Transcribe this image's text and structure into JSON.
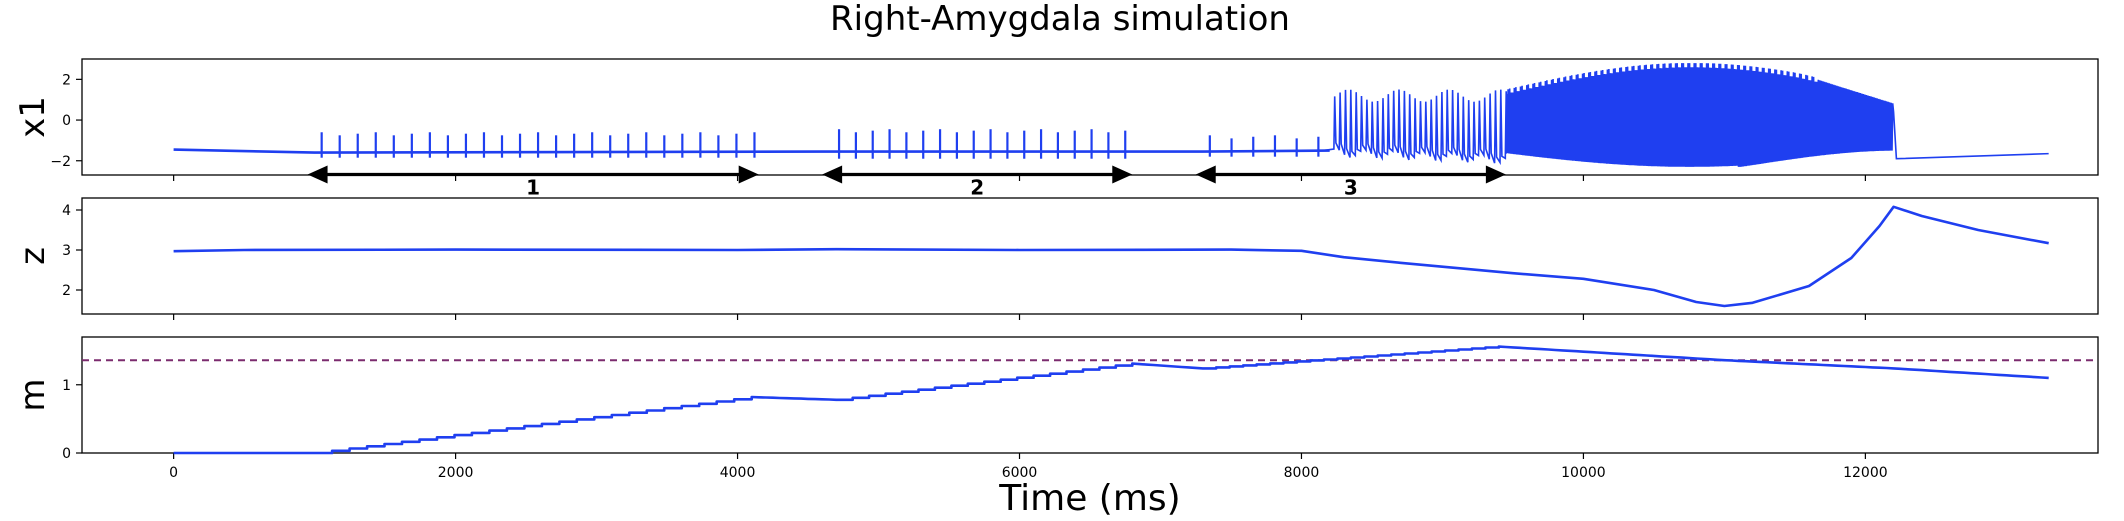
{
  "figure": {
    "title": "Right-Amygdala simulation"
  },
  "chart_data": [
    {
      "type": "line",
      "panel": "x1",
      "ylabel": "x1",
      "xlim": [
        -650,
        13650
      ],
      "ylim": [
        -2.7,
        3.0
      ],
      "yticks": [
        -2,
        0,
        2
      ],
      "ytick_labels": [
        "−2",
        "0",
        "2"
      ],
      "series": [
        {
          "color": "#1f3ff0",
          "baseline": -1.55,
          "resting_segments": [
            [
              0,
              1000,
              -1.45,
              -1.6
            ],
            [
              1000,
              4600,
              -1.6,
              -1.55
            ],
            [
              4600,
              7300,
              -1.55,
              -1.55
            ],
            [
              7300,
              8200,
              -1.55,
              -1.5
            ]
          ],
          "spike_trains": [
            {
              "x_start": 1050,
              "x_end": 4120,
              "count": 25,
              "top": -0.75,
              "bottom": -1.85
            },
            {
              "x_start": 4720,
              "x_end": 6750,
              "count": 18,
              "top": -0.6,
              "bottom": -1.9
            },
            {
              "x_start": 7350,
              "x_end": 8120,
              "count": 6,
              "top": -0.9,
              "bottom": -1.8
            }
          ],
          "seizure": {
            "x_start": 8200,
            "x_end": 12200,
            "peak_max": 2.8,
            "trough_min": -2.3,
            "end_value": -1.9,
            "recovery_end": [
              13300,
              -1.65
            ]
          }
        }
      ],
      "annotations": [
        {
          "label": "1",
          "x_start": 950,
          "x_end": 4150,
          "y": -2.7
        },
        {
          "label": "2",
          "x_start": 4600,
          "x_end": 6800,
          "y": -2.7
        },
        {
          "label": "3",
          "x_start": 7250,
          "x_end": 9450,
          "y": -2.7
        }
      ]
    },
    {
      "type": "line",
      "panel": "z",
      "ylabel": "z",
      "xlim": [
        -650,
        13650
      ],
      "ylim": [
        1.4,
        4.3
      ],
      "yticks": [
        2,
        3,
        4
      ],
      "ytick_labels": [
        "2",
        "3",
        "4"
      ],
      "series": [
        {
          "color": "#1f3ff0",
          "points": [
            [
              0,
              2.97
            ],
            [
              500,
              3.0
            ],
            [
              2000,
              3.01
            ],
            [
              4000,
              3.0
            ],
            [
              4700,
              3.02
            ],
            [
              6000,
              3.0
            ],
            [
              7500,
              3.01
            ],
            [
              8000,
              2.98
            ],
            [
              8300,
              2.82
            ],
            [
              8700,
              2.68
            ],
            [
              9500,
              2.42
            ],
            [
              10000,
              2.28
            ],
            [
              10500,
              2.0
            ],
            [
              10800,
              1.7
            ],
            [
              11000,
              1.6
            ],
            [
              11200,
              1.68
            ],
            [
              11600,
              2.1
            ],
            [
              11900,
              2.8
            ],
            [
              12100,
              3.6
            ],
            [
              12200,
              4.08
            ],
            [
              12400,
              3.85
            ],
            [
              12800,
              3.5
            ],
            [
              13300,
              3.17
            ]
          ]
        }
      ]
    },
    {
      "type": "line",
      "panel": "m",
      "ylabel": "m",
      "xlabel": "Time (ms)",
      "xlim": [
        -650,
        13650
      ],
      "ylim": [
        0,
        1.7
      ],
      "yticks": [
        0,
        1
      ],
      "ytick_labels": [
        "0",
        "1"
      ],
      "xticks": [
        0,
        2000,
        4000,
        6000,
        8000,
        10000,
        12000
      ],
      "xtick_labels": [
        "0",
        "2000",
        "4000",
        "6000",
        "8000",
        "10000",
        "12000"
      ],
      "threshold": {
        "y": 1.36,
        "color": "#7b2b6e",
        "style": "dashed"
      },
      "series": [
        {
          "color": "#1f3ff0",
          "points": [
            [
              0,
              0.0
            ],
            [
              1000,
              0.0
            ],
            [
              4100,
              0.82
            ],
            [
              4700,
              0.78
            ],
            [
              6800,
              1.31
            ],
            [
              7300,
              1.24
            ],
            [
              9400,
              1.56
            ],
            [
              11000,
              1.36
            ],
            [
              12200,
              1.24
            ],
            [
              13300,
              1.1
            ]
          ],
          "stepped_ranges": [
            [
              1000,
              4100,
              25
            ],
            [
              4700,
              6800,
              18
            ],
            [
              7300,
              9400,
              22
            ]
          ]
        }
      ]
    }
  ]
}
